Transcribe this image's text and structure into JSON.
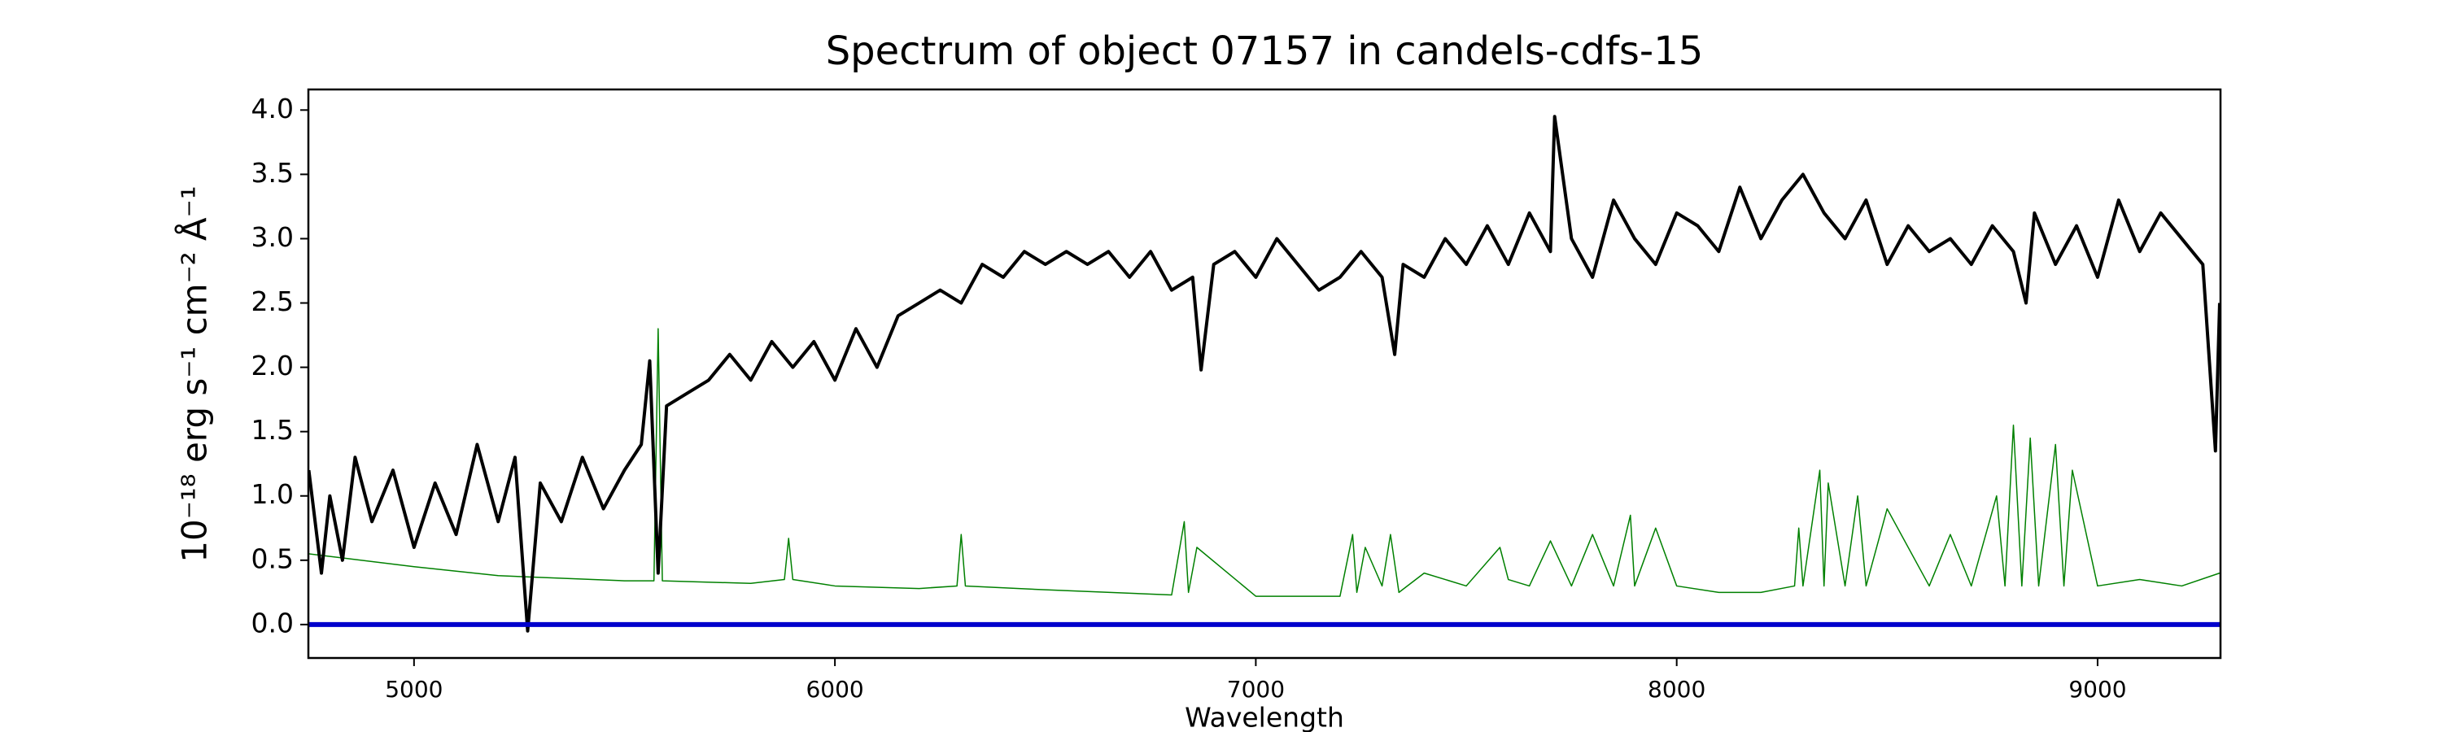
{
  "chart_data": {
    "type": "line",
    "title": "Spectrum of object 07157 in candels-cdfs-15",
    "x_label": "Wavelength",
    "y_label": "10⁻¹⁸ erg s⁻¹ cm⁻² Å⁻¹",
    "xlim": [
      4749,
      9292
    ],
    "ylim": [
      -0.26,
      4.16
    ],
    "xticks": [
      5000,
      6000,
      7000,
      8000,
      9000
    ],
    "yticks": [
      {
        "value": 0,
        "label": "0.0"
      },
      0.5,
      {
        "value": 1,
        "label": "1.0"
      },
      1.5,
      {
        "value": 2,
        "label": "2.0"
      },
      2.5,
      {
        "value": 3,
        "label": "3.0"
      },
      3.5,
      {
        "value": 4,
        "label": "4.0"
      }
    ],
    "series": [
      {
        "color": "#008000",
        "width": 1.5,
        "x": [
          4750,
          5000,
          5200,
          5500,
          5570,
          5580,
          5590,
          5800,
          5880,
          5890,
          5900,
          6000,
          6200,
          6290,
          6300,
          6310,
          6500,
          6800,
          6830,
          6840,
          6860,
          7000,
          7200,
          7230,
          7240,
          7260,
          7300,
          7320,
          7340,
          7400,
          7500,
          7580,
          7600,
          7650,
          7700,
          7750,
          7800,
          7850,
          7890,
          7900,
          7950,
          8000,
          8100,
          8200,
          8280,
          8290,
          8300,
          8340,
          8350,
          8360,
          8400,
          8430,
          8450,
          8500,
          8600,
          8650,
          8700,
          8760,
          8780,
          8800,
          8820,
          8840,
          8860,
          8900,
          8920,
          8940,
          9000,
          9100,
          9200,
          9290
        ],
        "values": [
          0.55,
          0.45,
          0.38,
          0.34,
          0.34,
          2.3,
          0.34,
          0.32,
          0.35,
          0.67,
          0.35,
          0.3,
          0.28,
          0.3,
          0.7,
          0.3,
          0.27,
          0.23,
          0.8,
          0.25,
          0.6,
          0.22,
          0.22,
          0.7,
          0.25,
          0.6,
          0.3,
          0.7,
          0.25,
          0.4,
          0.3,
          0.6,
          0.35,
          0.3,
          0.65,
          0.3,
          0.7,
          0.3,
          0.85,
          0.3,
          0.75,
          0.3,
          0.25,
          0.25,
          0.3,
          0.75,
          0.3,
          1.2,
          0.3,
          1.1,
          0.3,
          1.0,
          0.3,
          0.9,
          0.3,
          0.7,
          0.3,
          1.0,
          0.3,
          1.55,
          0.3,
          1.45,
          0.3,
          1.4,
          0.3,
          1.2,
          0.3,
          0.35,
          0.3,
          0.4
        ]
      },
      {
        "color": "#000000",
        "width": 4,
        "x": [
          4750,
          4780,
          4800,
          4830,
          4860,
          4900,
          4950,
          5000,
          5050,
          5100,
          5150,
          5200,
          5240,
          5270,
          5300,
          5350,
          5400,
          5450,
          5500,
          5540,
          5560,
          5580,
          5600,
          5650,
          5700,
          5750,
          5800,
          5850,
          5900,
          5950,
          6000,
          6050,
          6100,
          6150,
          6200,
          6250,
          6300,
          6350,
          6400,
          6450,
          6500,
          6550,
          6600,
          6650,
          6700,
          6750,
          6800,
          6850,
          6870,
          6900,
          6950,
          7000,
          7050,
          7100,
          7150,
          7200,
          7250,
          7300,
          7330,
          7350,
          7400,
          7450,
          7500,
          7550,
          7600,
          7650,
          7700,
          7710,
          7750,
          7800,
          7850,
          7900,
          7950,
          8000,
          8050,
          8100,
          8150,
          8200,
          8250,
          8300,
          8350,
          8400,
          8450,
          8500,
          8550,
          8600,
          8650,
          8700,
          8750,
          8800,
          8830,
          8850,
          8900,
          8950,
          9000,
          9050,
          9100,
          9150,
          9200,
          9250,
          9280,
          9290
        ],
        "values": [
          1.2,
          0.4,
          1.0,
          0.5,
          1.3,
          0.8,
          1.2,
          0.6,
          1.1,
          0.7,
          1.4,
          0.8,
          1.3,
          -0.05,
          1.1,
          0.8,
          1.3,
          0.9,
          1.2,
          1.4,
          2.05,
          0.4,
          1.7,
          1.8,
          1.9,
          2.1,
          1.9,
          2.2,
          2.0,
          2.2,
          1.9,
          2.3,
          2.0,
          2.4,
          2.5,
          2.6,
          2.5,
          2.8,
          2.7,
          2.9,
          2.8,
          2.9,
          2.8,
          2.9,
          2.7,
          2.9,
          2.6,
          2.7,
          1.98,
          2.8,
          2.9,
          2.7,
          3.0,
          2.8,
          2.6,
          2.7,
          2.9,
          2.7,
          2.1,
          2.8,
          2.7,
          3.0,
          2.8,
          3.1,
          2.8,
          3.2,
          2.9,
          3.95,
          3.0,
          2.7,
          3.3,
          3.0,
          2.8,
          3.2,
          3.1,
          2.9,
          3.4,
          3.0,
          3.3,
          3.5,
          3.2,
          3.0,
          3.3,
          2.8,
          3.1,
          2.9,
          3.0,
          2.8,
          3.1,
          2.9,
          2.5,
          3.2,
          2.8,
          3.1,
          2.7,
          3.3,
          2.9,
          3.2,
          3.0,
          2.8,
          1.35,
          2.5
        ]
      },
      {
        "color": "#0000cc",
        "width": 6,
        "x": [
          4749,
          9292
        ],
        "values": [
          0,
          0
        ]
      }
    ]
  }
}
